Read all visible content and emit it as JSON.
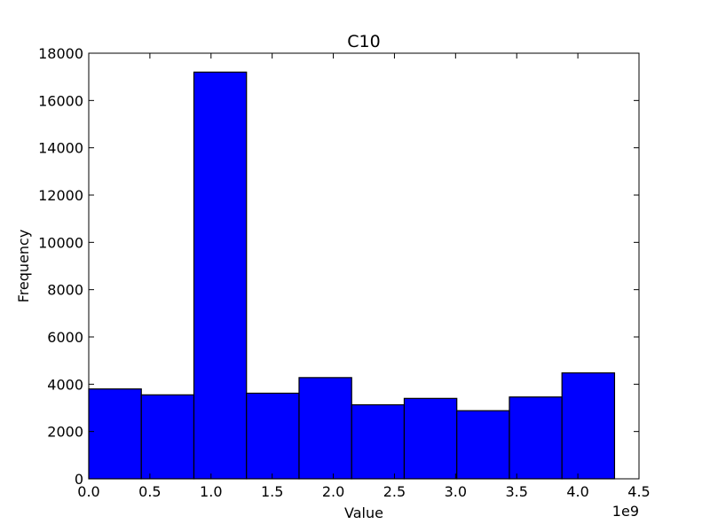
{
  "chart_data": {
    "type": "bar",
    "subtype": "histogram",
    "title": "C10",
    "xlabel": "Value",
    "ylabel": "Frequency",
    "x_offset_text": "1e9",
    "xlim": [
      0,
      4.5
    ],
    "ylim": [
      0,
      18000
    ],
    "x_ticks": [
      0.0,
      0.5,
      1.0,
      1.5,
      2.0,
      2.5,
      3.0,
      3.5,
      4.0,
      4.5
    ],
    "x_tick_labels": [
      "0.0",
      "0.5",
      "1.0",
      "1.5",
      "2.0",
      "2.5",
      "3.0",
      "3.5",
      "4.0",
      "4.5"
    ],
    "y_ticks": [
      0,
      2000,
      4000,
      6000,
      8000,
      10000,
      12000,
      14000,
      16000,
      18000
    ],
    "y_tick_labels": [
      "0",
      "2000",
      "4000",
      "6000",
      "8000",
      "10000",
      "12000",
      "14000",
      "16000",
      "18000"
    ],
    "bin_edges": [
      0.0,
      0.43,
      0.86,
      1.29,
      1.72,
      2.15,
      2.58,
      3.01,
      3.44,
      3.87,
      4.3
    ],
    "values": [
      3800,
      3550,
      17200,
      3620,
      4280,
      3130,
      3400,
      2880,
      3460,
      4480
    ],
    "bar_color": "#0000ff",
    "edge_color": "#000000",
    "grid": false,
    "legend": "none"
  }
}
